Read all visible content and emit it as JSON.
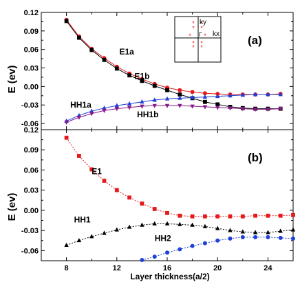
{
  "chart_data": [
    {
      "type": "line",
      "panel_label": "(a)",
      "ylabel": "E (ev)",
      "xlim": [
        6,
        26
      ],
      "ylim": [
        -0.07,
        0.12
      ],
      "yticks": [
        0.12,
        0.09,
        0.06,
        0.03,
        0.0,
        -0.03,
        -0.06
      ],
      "ytick_labels": [
        "0.12",
        "0.09",
        "0.06",
        "0.03",
        "0.00",
        "-0.03",
        "-0.06"
      ],
      "x": [
        8,
        9,
        10,
        11,
        12,
        13,
        14,
        15,
        16,
        17,
        18,
        19,
        20,
        21,
        22,
        23,
        24,
        25
      ],
      "series": [
        {
          "name": "E1a",
          "color": "#e41a1c",
          "marker": "circle",
          "values": [
            0.108,
            0.081,
            0.061,
            0.046,
            0.032,
            0.021,
            0.012,
            0.004,
            -0.002,
            -0.006,
            -0.009,
            -0.011,
            -0.012,
            -0.013,
            -0.013,
            -0.013,
            -0.013,
            -0.012
          ]
        },
        {
          "name": "E1b",
          "color": "#000000",
          "marker": "square",
          "values": [
            0.106,
            0.079,
            0.059,
            0.043,
            0.029,
            0.018,
            0.009,
            0.001,
            -0.006,
            -0.013,
            -0.019,
            -0.025,
            -0.029,
            -0.033,
            -0.035,
            -0.036,
            -0.036,
            -0.036
          ]
        },
        {
          "name": "HH1a",
          "color": "#1f3fd6",
          "marker": "triangle-up",
          "values": [
            -0.056,
            -0.047,
            -0.04,
            -0.035,
            -0.031,
            -0.028,
            -0.025,
            -0.022,
            -0.02,
            -0.019,
            -0.018,
            -0.017,
            -0.016,
            -0.015,
            -0.014,
            -0.013,
            -0.013,
            -0.013
          ]
        },
        {
          "name": "HH1b",
          "color": "#8b1a8b",
          "marker": "triangle-down",
          "values": [
            -0.058,
            -0.05,
            -0.044,
            -0.039,
            -0.036,
            -0.034,
            -0.032,
            -0.031,
            -0.031,
            -0.031,
            -0.032,
            -0.033,
            -0.034,
            -0.035,
            -0.036,
            -0.037,
            -0.037,
            -0.036
          ]
        }
      ],
      "labels": [
        {
          "text": "E1a",
          "x": 12.2,
          "y": 0.052
        },
        {
          "text": "E1b",
          "x": 13.4,
          "y": 0.012
        },
        {
          "text": "HH1a",
          "x": 8.3,
          "y": -0.034
        },
        {
          "text": "HH1b",
          "x": 13.6,
          "y": -0.05
        }
      ],
      "inset": {
        "labels": [
          "ky",
          "kx",
          "Γ"
        ]
      }
    },
    {
      "type": "line",
      "panel_label": "(b)",
      "ylabel": "E (ev)",
      "xlabel": "Layer thickness(a/2)",
      "xlim": [
        6,
        26
      ],
      "ylim": [
        -0.075,
        0.12
      ],
      "yticks": [
        0.12,
        0.09,
        0.06,
        0.03,
        0.0,
        -0.03,
        -0.06
      ],
      "ytick_labels": [
        "0.12",
        "0.09",
        "0.06",
        "0.03",
        "0.00",
        "-0.03",
        "-0.06"
      ],
      "xticks": [
        8,
        12,
        16,
        20,
        24
      ],
      "xtick_labels": [
        "8",
        "12",
        "16",
        "20",
        "24"
      ],
      "series": [
        {
          "name": "E1",
          "color": "#e41a1c",
          "marker": "square",
          "x": [
            8,
            9,
            10,
            11,
            12,
            13,
            14,
            15,
            16,
            17,
            18,
            19,
            20,
            21,
            22,
            23,
            24,
            25,
            26
          ],
          "values": [
            0.108,
            0.081,
            0.061,
            0.044,
            0.03,
            0.019,
            0.01,
            0.002,
            -0.004,
            -0.008,
            -0.009,
            -0.009,
            -0.009,
            -0.009,
            -0.009,
            -0.008,
            -0.008,
            -0.008,
            -0.007
          ]
        },
        {
          "name": "HH1",
          "color": "#000000",
          "marker": "triangle-up",
          "x": [
            8,
            9,
            10,
            11,
            12,
            13,
            14,
            15,
            16,
            17,
            18,
            19,
            20,
            21,
            22,
            23,
            24,
            25,
            26
          ],
          "values": [
            -0.052,
            -0.045,
            -0.039,
            -0.034,
            -0.029,
            -0.025,
            -0.022,
            -0.02,
            -0.02,
            -0.021,
            -0.022,
            -0.024,
            -0.027,
            -0.03,
            -0.032,
            -0.033,
            -0.033,
            -0.031,
            -0.029
          ]
        },
        {
          "name": "HH2",
          "color": "#1f3fd6",
          "marker": "circle",
          "x": [
            14,
            15,
            16,
            17,
            18,
            19,
            20,
            21,
            22,
            23,
            24,
            25,
            26
          ],
          "values": [
            -0.074,
            -0.069,
            -0.063,
            -0.058,
            -0.053,
            -0.049,
            -0.045,
            -0.042,
            -0.04,
            -0.04,
            -0.04,
            -0.041,
            -0.042
          ]
        }
      ],
      "labels": [
        {
          "text": "E1",
          "x": 10.0,
          "y": 0.054
        },
        {
          "text": "HH1",
          "x": 8.6,
          "y": -0.018
        },
        {
          "text": "HH2",
          "x": 15.0,
          "y": -0.046
        }
      ]
    }
  ]
}
